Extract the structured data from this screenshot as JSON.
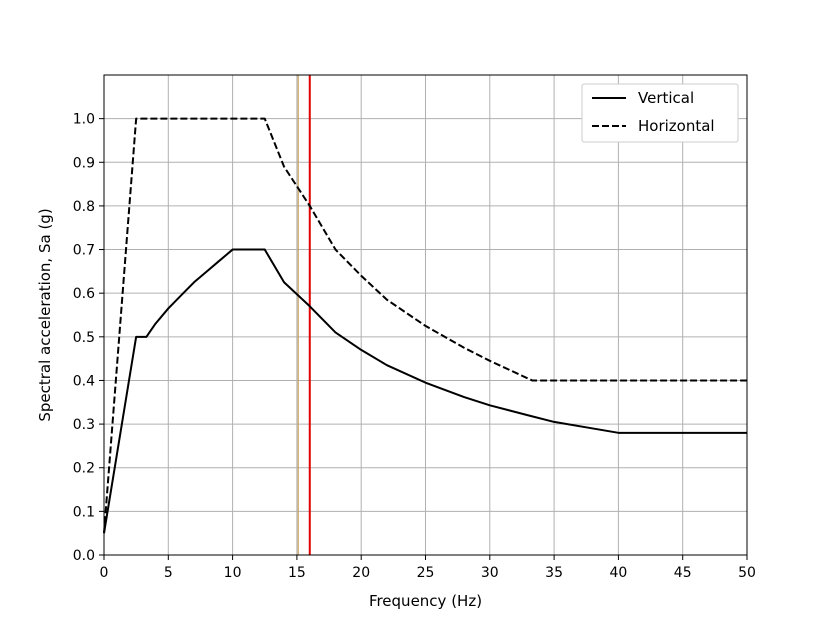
{
  "chart_data": {
    "type": "line",
    "title": "",
    "xlabel": "Frequency (Hz)",
    "ylabel": "Spectral acceleration, Sa (g)",
    "xlim": [
      0,
      50
    ],
    "ylim": [
      0,
      1.1
    ],
    "xticks": [
      0,
      5,
      10,
      15,
      20,
      25,
      30,
      35,
      40,
      45,
      50
    ],
    "xtick_labels": [
      "0",
      "5",
      "10",
      "15",
      "20",
      "25",
      "30",
      "35",
      "40",
      "45",
      "50"
    ],
    "yticks": [
      0.0,
      0.1,
      0.2,
      0.3,
      0.4,
      0.5,
      0.6,
      0.7,
      0.8,
      0.9,
      1.0
    ],
    "ytick_labels": [
      "0.0",
      "0.1",
      "0.2",
      "0.3",
      "0.4",
      "0.5",
      "0.6",
      "0.7",
      "0.8",
      "0.9",
      "1.0"
    ],
    "grid": true,
    "legend_position": "top-right",
    "series": [
      {
        "name": "Vertical",
        "style": "solid",
        "color": "#000000",
        "x": [
          0,
          2.5,
          3.3,
          4,
          5,
          6,
          7,
          8,
          9,
          10,
          12.5,
          14,
          16,
          18,
          20,
          22,
          25,
          28,
          30,
          33,
          35,
          38,
          40,
          45,
          50
        ],
        "y": [
          0.05,
          0.5,
          0.5,
          0.53,
          0.565,
          0.595,
          0.625,
          0.65,
          0.675,
          0.7,
          0.7,
          0.625,
          0.57,
          0.51,
          0.47,
          0.435,
          0.395,
          0.362,
          0.343,
          0.32,
          0.305,
          0.29,
          0.28,
          0.28,
          0.28
        ]
      },
      {
        "name": "Horizontal",
        "style": "dashed",
        "color": "#000000",
        "x": [
          0,
          2.5,
          12.5,
          14,
          16,
          18,
          20,
          22,
          25,
          28,
          30,
          33.3,
          35,
          40,
          45,
          50
        ],
        "y": [
          0.05,
          1.0,
          1.0,
          0.89,
          0.8,
          0.7,
          0.64,
          0.585,
          0.525,
          0.475,
          0.445,
          0.4,
          0.4,
          0.4,
          0.4,
          0.4
        ]
      }
    ],
    "reference_lines": [
      {
        "x": 15.1,
        "color": "#c8a060"
      },
      {
        "x": 16.0,
        "color": "#e00000"
      }
    ]
  }
}
